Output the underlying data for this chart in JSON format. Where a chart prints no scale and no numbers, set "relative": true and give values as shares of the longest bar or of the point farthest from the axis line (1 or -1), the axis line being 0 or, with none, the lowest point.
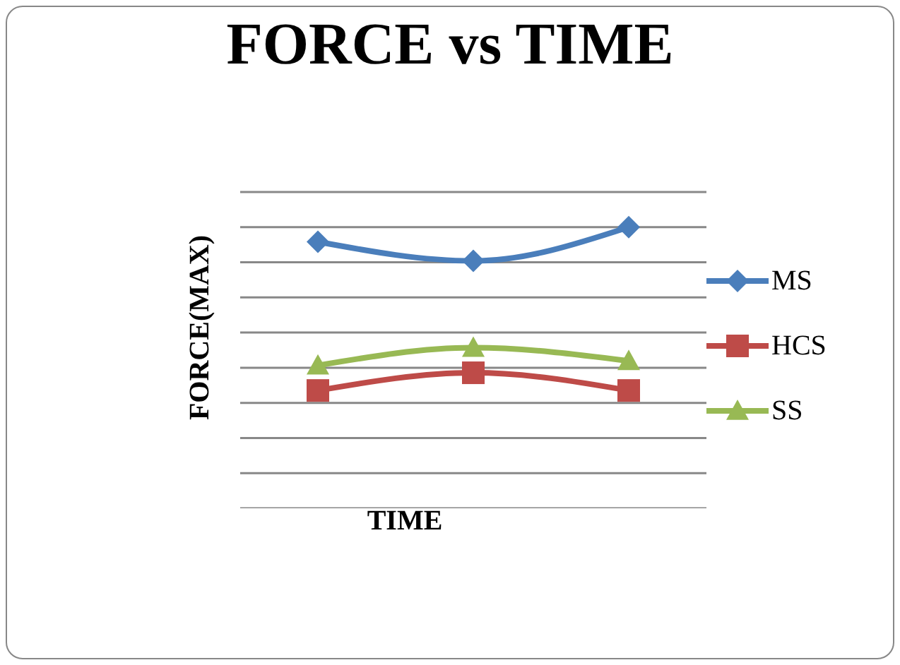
{
  "chart_data": {
    "type": "line",
    "title": "FORCE vs TIME",
    "xlabel": "TIME",
    "ylabel": "FORCE(MAX)",
    "relative": true,
    "categories": [
      null,
      null,
      null
    ],
    "tick_labels": false,
    "grid": "y",
    "legend": "right",
    "line_style": "solid",
    "series": [
      {
        "name": "MS",
        "color": "#4a7ebb",
        "marker": "diamond",
        "values": [
          0.948,
          0.88,
          1
        ]
      },
      {
        "name": "HCS",
        "color": "#be4b48",
        "marker": "square",
        "values": [
          0.419,
          0.482,
          0.419
        ]
      },
      {
        "name": "SS",
        "color": "#98b954",
        "marker": "triangle",
        "values": [
          0.508,
          0.571,
          0.524
        ]
      }
    ]
  }
}
